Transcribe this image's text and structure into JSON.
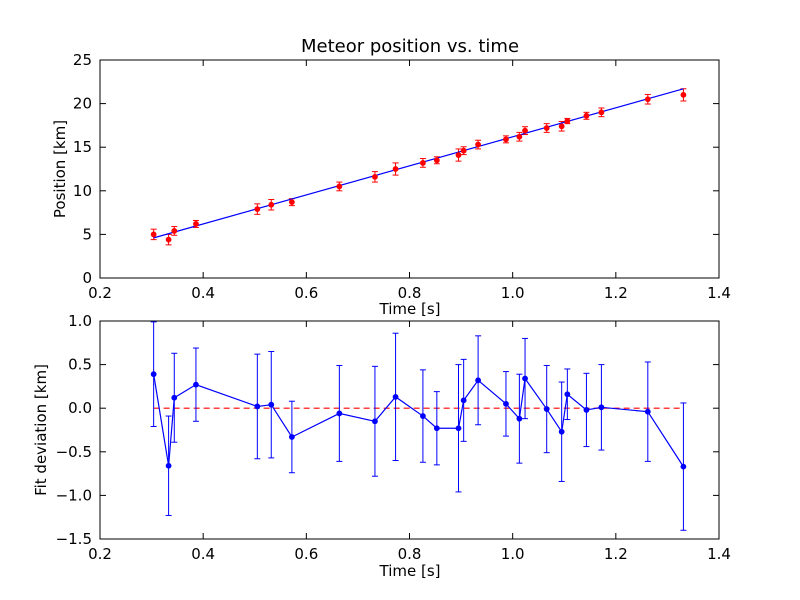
{
  "chart_data": [
    {
      "type": "scatter",
      "title": "Meteor position vs. time",
      "xlabel": "Time [s]",
      "ylabel": "Position [km]",
      "xlim": [
        0.2,
        1.4
      ],
      "ylim": [
        0,
        25
      ],
      "xticks": [
        "0.2",
        "0.4",
        "0.6",
        "0.8",
        "1.0",
        "1.2",
        "1.4"
      ],
      "yticks": [
        "0",
        "5",
        "10",
        "15",
        "20",
        "25"
      ],
      "grid": false,
      "colors": {
        "points": "#ff0000",
        "errorbars": "#ff0000",
        "fit": "#0000ff"
      },
      "series": [
        {
          "kind": "points-with-errorbars",
          "x": [
            0.304,
            0.333,
            0.344,
            0.386,
            0.505,
            0.532,
            0.572,
            0.664,
            0.733,
            0.773,
            0.826,
            0.853,
            0.895,
            0.905,
            0.933,
            0.987,
            1.013,
            1.024,
            1.066,
            1.095,
            1.106,
            1.143,
            1.172,
            1.262,
            1.331
          ],
          "y": [
            5.0,
            4.4,
            5.4,
            6.2,
            7.9,
            8.4,
            8.7,
            10.5,
            11.6,
            12.5,
            13.2,
            13.5,
            14.1,
            14.6,
            15.3,
            15.9,
            16.2,
            16.9,
            17.2,
            17.4,
            18.0,
            18.6,
            19.0,
            20.5,
            21.0
          ],
          "yerr": [
            0.6,
            0.6,
            0.5,
            0.4,
            0.6,
            0.6,
            0.4,
            0.5,
            0.6,
            0.7,
            0.5,
            0.4,
            0.7,
            0.45,
            0.5,
            0.4,
            0.5,
            0.45,
            0.5,
            0.55,
            0.3,
            0.4,
            0.5,
            0.55,
            0.7
          ]
        },
        {
          "kind": "fit-line",
          "x": [
            0.304,
            1.331
          ],
          "y": [
            4.6,
            21.7
          ]
        }
      ]
    },
    {
      "type": "line",
      "title": "",
      "xlabel": "Time [s]",
      "ylabel": "Fit deviation [km]",
      "xlim": [
        0.2,
        1.4
      ],
      "ylim": [
        -1.5,
        1.0
      ],
      "xticks": [
        "0.2",
        "0.4",
        "0.6",
        "0.8",
        "1.0",
        "1.2",
        "1.4"
      ],
      "yticks": [
        "−1.5",
        "−1.0",
        "−0.5",
        "0.0",
        "0.5",
        "1.0"
      ],
      "grid": false,
      "colors": {
        "series": "#0000ff",
        "reference": "#ff0000"
      },
      "series": [
        {
          "kind": "line-with-errorbars",
          "x": [
            0.304,
            0.333,
            0.344,
            0.386,
            0.505,
            0.532,
            0.572,
            0.664,
            0.733,
            0.773,
            0.826,
            0.853,
            0.895,
            0.905,
            0.933,
            0.987,
            1.013,
            1.024,
            1.066,
            1.095,
            1.106,
            1.143,
            1.172,
            1.262,
            1.331
          ],
          "y": [
            0.39,
            -0.66,
            0.12,
            0.27,
            0.02,
            0.04,
            -0.33,
            -0.06,
            -0.15,
            0.13,
            -0.09,
            -0.23,
            -0.23,
            0.09,
            0.32,
            0.05,
            -0.12,
            0.34,
            -0.01,
            -0.27,
            0.16,
            -0.02,
            0.01,
            -0.04,
            -0.67
          ],
          "yerr": [
            0.6,
            0.57,
            0.51,
            0.42,
            0.6,
            0.61,
            0.41,
            0.55,
            0.63,
            0.73,
            0.53,
            0.42,
            0.73,
            0.47,
            0.51,
            0.37,
            0.51,
            0.46,
            0.5,
            0.57,
            0.29,
            0.42,
            0.49,
            0.57,
            0.73
          ]
        },
        {
          "kind": "reference-line",
          "x": [
            0.304,
            1.331
          ],
          "y": [
            0,
            0
          ]
        }
      ]
    }
  ]
}
